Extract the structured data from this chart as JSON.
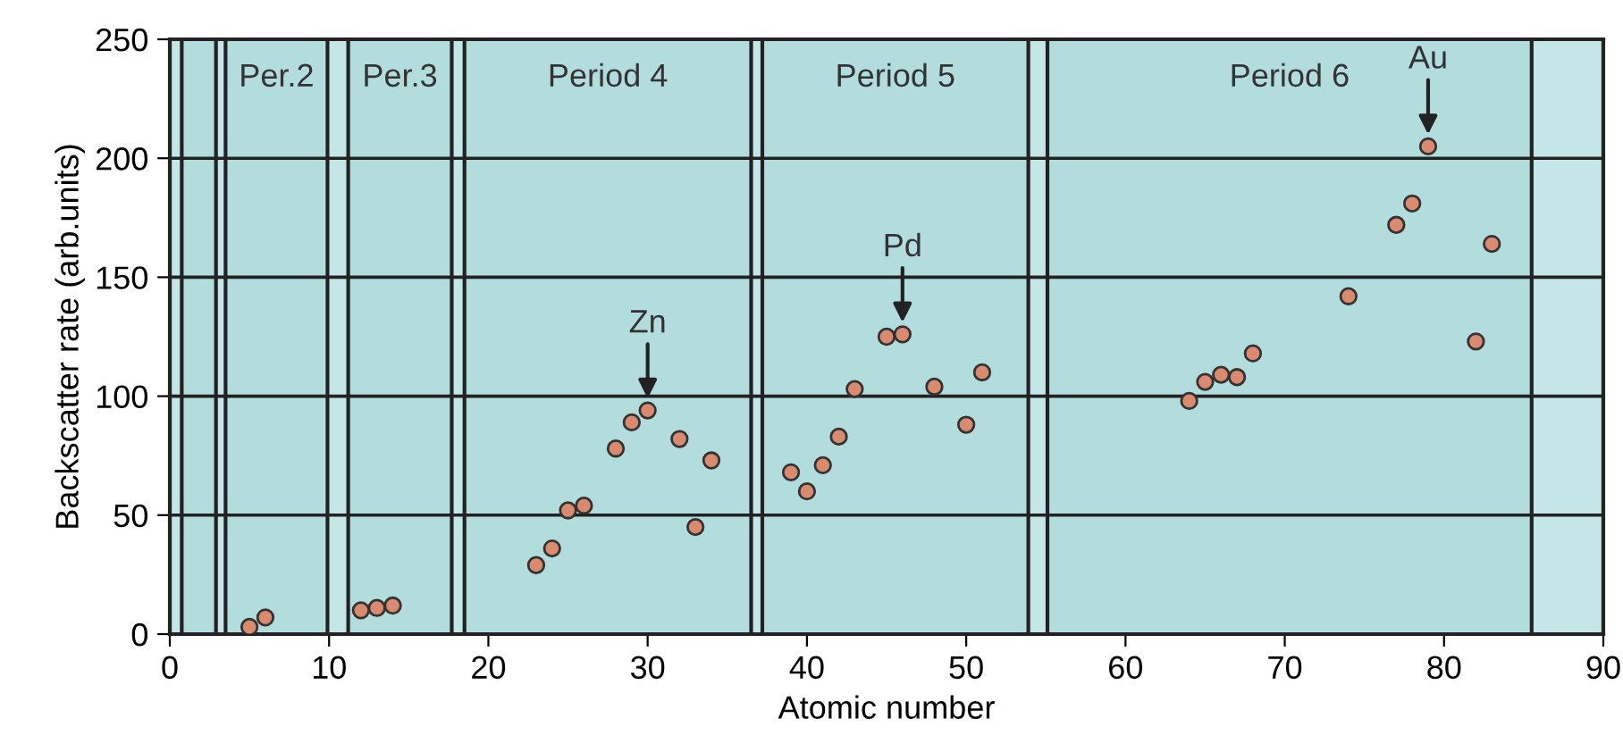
{
  "chart_data": {
    "type": "scatter",
    "xlabel": "Atomic number",
    "ylabel": "Backscatter rate (arb.units)",
    "xlim": [
      0,
      90
    ],
    "ylim": [
      0,
      250
    ],
    "xticks": [
      0,
      10,
      20,
      30,
      40,
      50,
      60,
      70,
      80,
      90
    ],
    "yticks": [
      0,
      50,
      100,
      150,
      200,
      250
    ],
    "grid": "y",
    "marker": "circle",
    "series": [
      {
        "color": "#d98a6f",
        "x": [
          5,
          6,
          12,
          13,
          14,
          23,
          24,
          25,
          26,
          28,
          29,
          30,
          32,
          33,
          34,
          39,
          40,
          41,
          42,
          43,
          45,
          46,
          48,
          50,
          51,
          64,
          65,
          66,
          67,
          68,
          74,
          77,
          78,
          79,
          82,
          83
        ],
        "values": [
          3,
          7,
          10,
          11,
          12,
          29,
          36,
          52,
          54,
          78,
          89,
          94,
          82,
          45,
          73,
          68,
          60,
          71,
          83,
          103,
          125,
          126,
          104,
          88,
          110,
          98,
          106,
          109,
          108,
          118,
          142,
          172,
          181,
          205,
          123,
          164
        ]
      }
    ],
    "bands": [
      {
        "axis": "x",
        "from": 0,
        "to": 90,
        "color": "#c5e6e6"
      },
      {
        "axis": "x",
        "from": 0.75,
        "to": 2.9,
        "color": "#b3dcdc"
      },
      {
        "axis": "x",
        "from": 3.5,
        "to": 9.9,
        "label": "Per.2",
        "color": "#b3dcdc"
      },
      {
        "axis": "x",
        "from": 11.2,
        "to": 17.7,
        "label": "Per.3",
        "color": "#b3dcdc"
      },
      {
        "axis": "x",
        "from": 18.5,
        "to": 36.5,
        "label": "Period 4",
        "color": "#b3dcdc"
      },
      {
        "axis": "x",
        "from": 37.2,
        "to": 53.9,
        "label": "Period 5",
        "color": "#b3dcdc"
      },
      {
        "axis": "x",
        "from": 55.1,
        "to": 85.5,
        "label": "Period 6",
        "color": "#b3dcdc"
      }
    ],
    "annotations": [
      {
        "text": "Zn",
        "x": 30,
        "y": 94
      },
      {
        "text": "Pd",
        "x": 46,
        "y": 126
      },
      {
        "text": "Au",
        "x": 79,
        "y": 205
      }
    ]
  }
}
